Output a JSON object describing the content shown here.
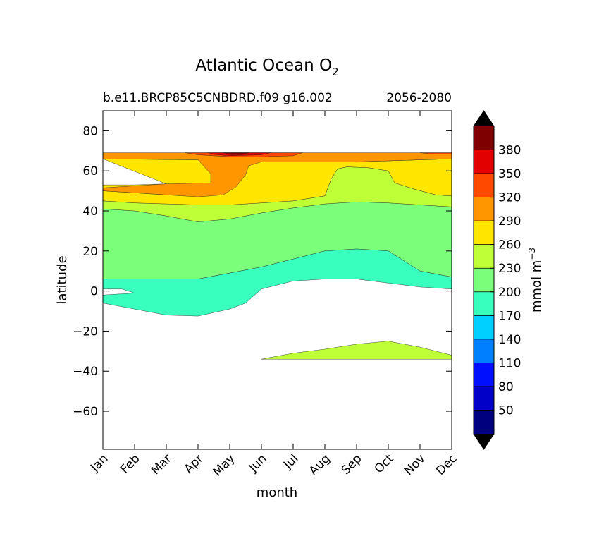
{
  "chart_data": {
    "type": "contourf",
    "title": "Atlantic Ocean O",
    "title_subscript": "2",
    "subtitle_left": "b.e11.BRCP85C5CNBDRD.f09 g16.002",
    "subtitle_right": "2056-2080",
    "xlabel": "month",
    "ylabel": "latitude",
    "x_categories": [
      "Jan",
      "Feb",
      "Mar",
      "Apr",
      "May",
      "Jun",
      "Jul",
      "Aug",
      "Sep",
      "Oct",
      "Nov",
      "Dec"
    ],
    "xlim": [
      1,
      12
    ],
    "ylim": [
      -79,
      90
    ],
    "y_ticks": [
      80,
      60,
      40,
      20,
      0,
      -20,
      -40,
      -60
    ],
    "y_tick_labels": [
      "80",
      "60",
      "40",
      "20",
      "0",
      "−20",
      "−40",
      "−60"
    ],
    "data_lat_range": [
      -34,
      69
    ],
    "colorbar": {
      "label": "mmol m",
      "label_superscript": "−3",
      "levels": [
        50,
        80,
        110,
        140,
        170,
        200,
        230,
        260,
        290,
        320,
        350,
        380
      ],
      "tick_labels": [
        "50",
        "80",
        "110",
        "140",
        "170",
        "200",
        "230",
        "260",
        "290",
        "320",
        "350",
        "380"
      ],
      "colors": [
        "#00007f",
        "#0000c8",
        "#0010ff",
        "#0080ff",
        "#00d0ff",
        "#38ffbe",
        "#7bff7b",
        "#bfff38",
        "#ffe600",
        "#ff9600",
        "#ff4800",
        "#e30000",
        "#7f0000"
      ],
      "extend": "both",
      "extend_color": "#000000"
    },
    "regions": [
      {
        "name": "band-200-230-north",
        "fill": "#7bff7b",
        "points": [
          [
            1,
            6
          ],
          [
            1,
            41
          ],
          [
            2,
            40
          ],
          [
            3,
            37.5
          ],
          [
            4,
            34.5
          ],
          [
            5,
            36
          ],
          [
            6,
            39
          ],
          [
            7,
            41.5
          ],
          [
            8,
            43.5
          ],
          [
            9,
            44.5
          ],
          [
            10,
            44
          ],
          [
            11,
            43
          ],
          [
            12,
            42
          ],
          [
            12,
            7
          ],
          [
            11,
            10
          ],
          [
            10,
            20
          ],
          [
            9,
            21
          ],
          [
            8,
            20
          ],
          [
            7,
            16
          ],
          [
            6,
            12
          ],
          [
            5,
            9
          ],
          [
            4,
            6
          ],
          [
            3,
            6
          ],
          [
            2,
            6
          ]
        ]
      },
      {
        "name": "band-260-290",
        "fill": "#bfff38",
        "points": [
          [
            1,
            45
          ],
          [
            2,
            44
          ],
          [
            3,
            43.5
          ],
          [
            4,
            43
          ],
          [
            5,
            43
          ],
          [
            6,
            44
          ],
          [
            7,
            45
          ],
          [
            8,
            47.5
          ],
          [
            8.2,
            56
          ],
          [
            8.4,
            61
          ],
          [
            8.7,
            62
          ],
          [
            9.4,
            61.5
          ],
          [
            10,
            60
          ],
          [
            10.2,
            54
          ],
          [
            10.8,
            51
          ],
          [
            11.5,
            48
          ],
          [
            12,
            47.5
          ],
          [
            12,
            42
          ],
          [
            11,
            43
          ],
          [
            10,
            44
          ],
          [
            9,
            44.5
          ],
          [
            8,
            43.5
          ],
          [
            7,
            41.5
          ],
          [
            6,
            39
          ],
          [
            5,
            36
          ],
          [
            4,
            34.5
          ],
          [
            3,
            37.5
          ],
          [
            2,
            40
          ],
          [
            1,
            41
          ]
        ]
      },
      {
        "name": "band-290-320",
        "fill": "#ffe600",
        "points": [
          [
            1,
            66
          ],
          [
            4,
            65.5
          ],
          [
            5,
            65
          ],
          [
            6,
            64.5
          ],
          [
            7,
            64.5
          ],
          [
            8,
            64.5
          ],
          [
            9,
            64.5
          ],
          [
            10,
            65
          ],
          [
            11,
            65.5
          ],
          [
            12,
            66
          ],
          [
            12,
            47.5
          ],
          [
            11.5,
            48
          ],
          [
            10.8,
            51
          ],
          [
            10.2,
            54
          ],
          [
            10,
            60
          ],
          [
            9.4,
            61.5
          ],
          [
            8.7,
            62
          ],
          [
            8.4,
            61
          ],
          [
            8.2,
            56
          ],
          [
            8,
            47.5
          ],
          [
            7,
            45
          ],
          [
            6,
            44
          ],
          [
            5,
            43
          ],
          [
            4,
            43
          ],
          [
            3,
            43.5
          ],
          [
            2,
            44
          ],
          [
            1,
            45
          ],
          [
            1,
            50
          ],
          [
            2,
            49
          ],
          [
            3,
            48
          ],
          [
            1,
            51.5
          ],
          [
            1,
            53
          ],
          [
            2,
            53
          ],
          [
            3,
            53.5
          ]
        ]
      },
      {
        "name": "band-320-350",
        "fill": "#ff9600",
        "points": [
          [
            1,
            69
          ],
          [
            12,
            69
          ],
          [
            12,
            66
          ],
          [
            11,
            65.5
          ],
          [
            10,
            65
          ],
          [
            9,
            64.5
          ],
          [
            8,
            64.5
          ],
          [
            7,
            64.5
          ],
          [
            6,
            64.5
          ],
          [
            5.6,
            62.5
          ],
          [
            5.5,
            58
          ],
          [
            5.2,
            52
          ],
          [
            4.8,
            48
          ],
          [
            4,
            47
          ],
          [
            3,
            48
          ],
          [
            2,
            49
          ],
          [
            1,
            50
          ],
          [
            1,
            51.5
          ],
          [
            3,
            53.5
          ],
          [
            4.4,
            54
          ],
          [
            4.4,
            58.5
          ],
          [
            4.2,
            62
          ],
          [
            4,
            65.5
          ],
          [
            1,
            66
          ]
        ]
      },
      {
        "name": "band-350-380",
        "fill": "#ff4800",
        "points": [
          [
            3.6,
            69
          ],
          [
            7.3,
            69
          ],
          [
            7,
            67.5
          ],
          [
            6,
            67
          ],
          [
            5,
            67
          ],
          [
            4,
            68
          ]
        ]
      },
      {
        "name": "band-350-380-dec",
        "fill": "#ff4800",
        "points": [
          [
            11,
            69
          ],
          [
            12,
            69
          ],
          [
            12,
            68.5
          ],
          [
            11.3,
            68.5
          ]
        ]
      },
      {
        "name": "band-380-plus",
        "fill": "#e30000",
        "points": [
          [
            4.3,
            69
          ],
          [
            6.3,
            69
          ],
          [
            6,
            68
          ],
          [
            5,
            67.5
          ],
          [
            4.5,
            68.2
          ]
        ]
      },
      {
        "name": "band-above-380-core",
        "fill": "#7f0000",
        "points": [
          [
            4.8,
            69
          ],
          [
            5.6,
            69
          ],
          [
            5.4,
            68.1
          ],
          [
            5,
            68.1
          ]
        ]
      },
      {
        "name": "band-170-200",
        "fill": "#38ffbe",
        "points": [
          [
            1,
            6
          ],
          [
            2,
            6
          ],
          [
            3,
            6
          ],
          [
            4,
            6
          ],
          [
            5,
            9
          ],
          [
            6,
            12
          ],
          [
            7,
            16
          ],
          [
            8,
            20
          ],
          [
            9,
            21
          ],
          [
            10,
            20
          ],
          [
            11,
            10
          ],
          [
            12,
            7
          ],
          [
            12,
            1
          ],
          [
            11,
            2
          ],
          [
            10,
            4
          ],
          [
            9,
            6
          ],
          [
            8,
            6
          ],
          [
            7,
            5
          ],
          [
            6,
            1
          ],
          [
            5.5,
            -6
          ],
          [
            5,
            -9
          ],
          [
            4,
            -12.5
          ],
          [
            3,
            -12
          ],
          [
            2,
            -9
          ],
          [
            1,
            -6
          ],
          [
            1,
            -2
          ],
          [
            2,
            -1
          ],
          [
            1.6,
            1
          ],
          [
            1,
            1
          ]
        ]
      },
      {
        "name": "band-230-260-south",
        "fill": "#bfff38",
        "points": [
          [
            6,
            -34
          ],
          [
            12,
            -34
          ],
          [
            12,
            -32
          ],
          [
            11,
            -28
          ],
          [
            10,
            -25
          ],
          [
            9,
            -26.5
          ],
          [
            8,
            -29
          ],
          [
            7,
            -31
          ]
        ]
      }
    ]
  }
}
